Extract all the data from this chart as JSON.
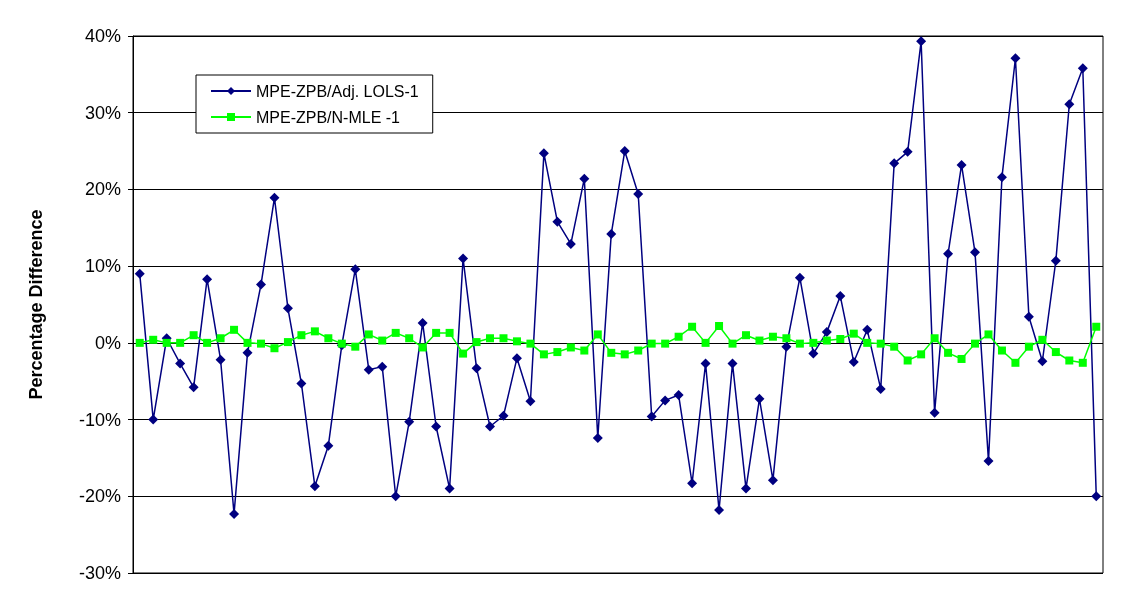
{
  "chart_data": {
    "type": "line",
    "ylabel": "Percentage Difference",
    "categories": [
      null,
      null,
      null,
      null,
      null,
      null,
      null,
      null,
      null,
      null,
      null,
      null,
      null,
      null,
      null,
      null,
      null,
      null,
      null,
      null,
      null,
      null,
      null,
      null,
      null,
      null,
      null,
      null,
      null,
      null,
      null,
      null,
      null,
      null,
      null,
      null,
      null,
      null,
      null,
      null,
      null,
      null,
      null,
      null,
      null,
      null,
      null,
      null,
      null,
      null,
      null,
      null,
      null,
      null,
      null,
      null,
      null,
      null,
      null,
      null,
      null,
      null,
      null,
      null,
      null,
      null,
      null,
      null,
      null,
      null,
      null,
      null
    ],
    "series": [
      {
        "name": "MPE-ZPB/Adj. LOLS-1",
        "color": "#000080",
        "marker": "diamond",
        "values": [
          9,
          -10,
          0.6,
          -2.7,
          -5.8,
          8.3,
          -2.2,
          -22.3,
          -1.3,
          7.6,
          18.9,
          4.5,
          -5.3,
          -18.7,
          -13.4,
          -0.3,
          9.6,
          -3.5,
          -3.1,
          -20,
          -10.3,
          2.6,
          -10.9,
          -19,
          11,
          -3.3,
          -10.9,
          -9.5,
          -2,
          -7.6,
          24.7,
          15.8,
          12.9,
          21.4,
          -12.4,
          14.2,
          25,
          19.4,
          -9.6,
          -7.5,
          -6.8,
          -18.3,
          -2.7,
          -21.8,
          -2.7,
          -19,
          -7.3,
          -17.9,
          -0.5,
          8.5,
          -1.4,
          1.4,
          6.1,
          -2.5,
          1.7,
          -6,
          23.4,
          24.9,
          39.3,
          -9.1,
          11.6,
          23.2,
          11.8,
          -15.4,
          21.6,
          37.1,
          3.4,
          -2.4,
          10.7,
          31.1,
          35.8,
          -20
        ]
      },
      {
        "name": "MPE-ZPB/N-MLE -1",
        "color": "#00ff00",
        "marker": "square",
        "values": [
          0,
          0.4,
          0,
          0,
          1,
          0,
          0.6,
          1.7,
          0,
          -0.1,
          -0.7,
          0.1,
          1,
          1.5,
          0.6,
          -0.1,
          -0.5,
          1.1,
          0.3,
          1.3,
          0.6,
          -0.6,
          1.3,
          1.3,
          -1.4,
          0.1,
          0.6,
          0.6,
          0.2,
          -0.1,
          -1.5,
          -1.2,
          -0.6,
          -1,
          1.1,
          -1.3,
          -1.5,
          -1,
          -0.1,
          -0.1,
          0.8,
          2.1,
          0,
          2.2,
          -0.1,
          1,
          0.3,
          0.8,
          0.6,
          -0.1,
          0,
          0.3,
          0.5,
          1.2,
          0,
          -0.1,
          -0.5,
          -2.3,
          -1.5,
          0.6,
          -1.3,
          -2.1,
          -0.1,
          1.1,
          -1,
          -2.6,
          -0.5,
          0.4,
          -1.2,
          -2.3,
          -2.6,
          2.1
        ]
      }
    ],
    "ylim": [
      -30,
      40
    ],
    "yticks": [
      {
        "value": -30,
        "label": "-30%"
      },
      {
        "value": -20,
        "label": "-20%"
      },
      {
        "value": -10,
        "label": "-10%"
      },
      {
        "value": 0,
        "label": "0%"
      },
      {
        "value": 10,
        "label": "10%"
      },
      {
        "value": 20,
        "label": "20%"
      },
      {
        "value": 30,
        "label": "30%"
      },
      {
        "value": 40,
        "label": "40%"
      }
    ],
    "grid": "y",
    "legend": "top left",
    "tick_labels": "y",
    "line_style": "solid"
  }
}
